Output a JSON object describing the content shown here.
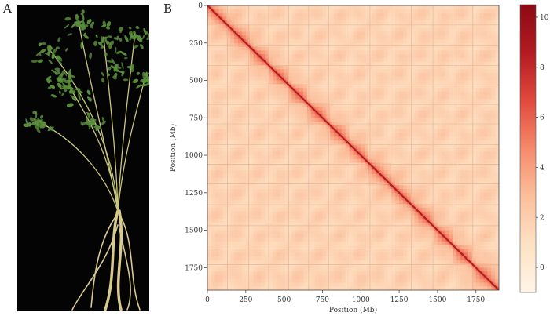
{
  "panels": {
    "a_label": "A",
    "b_label": "B"
  },
  "photo": {
    "icon": "plant-icon",
    "background_color": "#040404",
    "foliage_color": "#5a8f3c",
    "stem_color": "#c9c77d",
    "root_color": "#d8c98e"
  },
  "chart_data": {
    "type": "heatmap",
    "title": "",
    "xlabel": "Position (Mb)",
    "ylabel": "Position (Mb)",
    "xlim": [
      0,
      1900
    ],
    "ylim": [
      1900,
      0
    ],
    "x_ticks": [
      0,
      250,
      500,
      750,
      1000,
      1250,
      1500,
      1750
    ],
    "y_ticks": [
      0,
      250,
      500,
      750,
      1000,
      1250,
      1500,
      1750
    ],
    "block_boundaries": [
      130,
      270,
      400,
      530,
      660,
      790,
      930,
      1060,
      1190,
      1330,
      1470,
      1600,
      1730
    ],
    "colorbar": {
      "min": -1,
      "max": 10.5,
      "ticks": [
        0,
        2,
        4,
        6,
        8,
        10
      ],
      "colors": [
        "#fff5e6",
        "#fde2c4",
        "#fcbf9c",
        "#f58a6b",
        "#e04a3d",
        "#b31b22",
        "#8c0a14"
      ]
    },
    "background_value": 1.5,
    "diagonal_value": 8.5,
    "grid": false
  }
}
